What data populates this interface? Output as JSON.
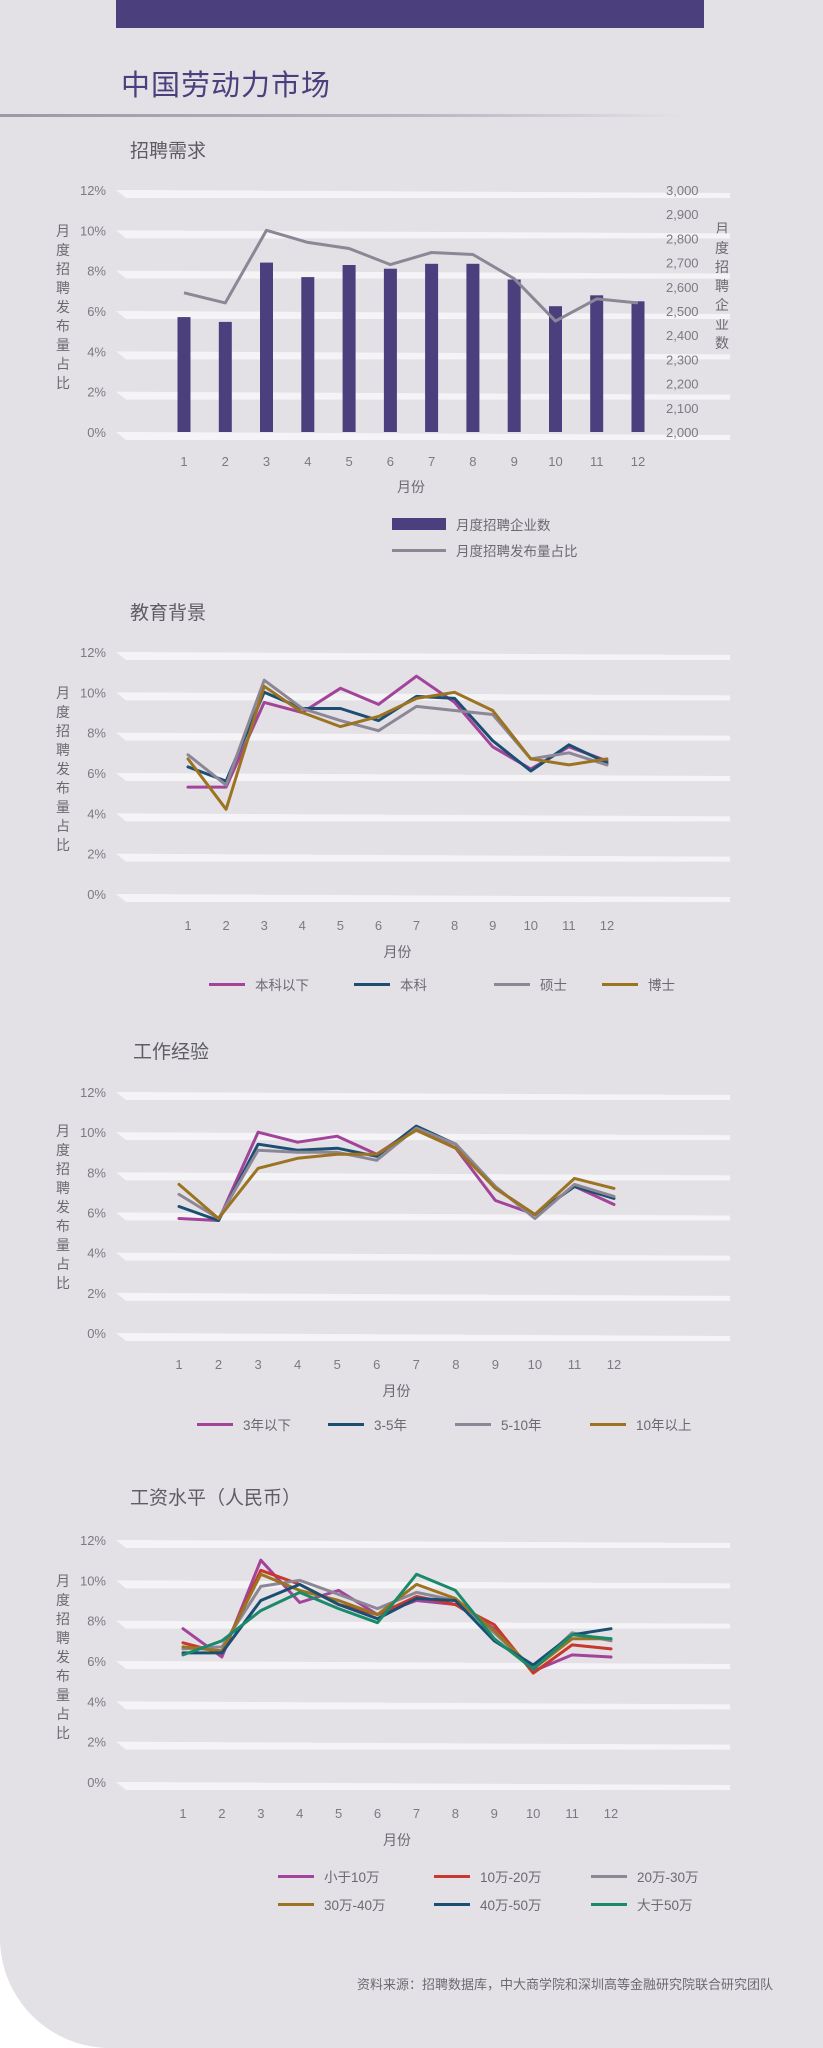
{
  "page": {
    "title": "中国劳动力市场",
    "source_note": "资料来源：招聘数据库，中大商学院和深圳高等金融研究院联合研究团队",
    "accent_color": "#4b3f7d"
  },
  "chart_data": [
    {
      "type": "bar",
      "title": "招聘需求",
      "categories": [
        "1",
        "2",
        "3",
        "4",
        "5",
        "6",
        "7",
        "8",
        "9",
        "10",
        "11",
        "12"
      ],
      "xlabel": "月份",
      "ylabel": "月度招聘发布量占比",
      "ylabel_right": "月度招聘企业数",
      "ylim": [
        0,
        12
      ],
      "yticks": [
        "0%",
        "2%",
        "4%",
        "6%",
        "8%",
        "10%",
        "12%"
      ],
      "y2lim": [
        2000,
        3000
      ],
      "y2ticks": [
        "2,000",
        "2,100",
        "2,200",
        "2,300",
        "2,400",
        "2,500",
        "2,600",
        "2,700",
        "2,800",
        "2,900",
        "3,000"
      ],
      "series": [
        {
          "name": "月度招聘企业数",
          "kind": "bar",
          "axis": "right",
          "color": "#4b3f7d",
          "values": [
            2475,
            2455,
            2700,
            2640,
            2690,
            2675,
            2695,
            2695,
            2630,
            2520,
            2565,
            2540
          ]
        },
        {
          "name": "月度招聘发布量占比",
          "kind": "line",
          "axis": "left",
          "color": "#8b8796",
          "values": [
            6.9,
            6.4,
            10.0,
            9.4,
            9.1,
            8.3,
            8.9,
            8.8,
            7.6,
            5.5,
            6.6,
            6.4
          ]
        }
      ],
      "grid": true,
      "legend_position": "bottom"
    },
    {
      "type": "line",
      "title": "教育背景",
      "categories": [
        "1",
        "2",
        "3",
        "4",
        "5",
        "6",
        "7",
        "8",
        "9",
        "10",
        "11",
        "12"
      ],
      "xlabel": "月份",
      "ylabel": "月度招聘发布量占比",
      "ylim": [
        0,
        12
      ],
      "yticks": [
        "0%",
        "2%",
        "4%",
        "6%",
        "8%",
        "10%",
        "12%"
      ],
      "series": [
        {
          "name": "本科以下",
          "color": "#a2449a",
          "values": [
            5.3,
            5.3,
            9.5,
            9.0,
            10.2,
            9.4,
            10.8,
            9.5,
            7.3,
            6.2,
            7.3,
            6.6
          ]
        },
        {
          "name": "本科",
          "color": "#1b4f72",
          "values": [
            6.3,
            5.6,
            10.0,
            9.2,
            9.2,
            8.6,
            9.8,
            9.7,
            7.6,
            6.1,
            7.4,
            6.5
          ]
        },
        {
          "name": "硕士",
          "color": "#8b8796",
          "values": [
            6.9,
            5.4,
            10.6,
            9.2,
            8.6,
            8.1,
            9.3,
            9.1,
            8.9,
            6.7,
            7.0,
            6.4
          ]
        },
        {
          "name": "博士",
          "color": "#9b7321",
          "values": [
            6.7,
            4.2,
            10.3,
            9.0,
            8.3,
            8.8,
            9.7,
            10.0,
            9.1,
            6.7,
            6.4,
            6.7
          ]
        }
      ],
      "grid": true,
      "legend_position": "bottom"
    },
    {
      "type": "line",
      "title": "工作经验",
      "categories": [
        "1",
        "2",
        "3",
        "4",
        "5",
        "6",
        "7",
        "8",
        "9",
        "10",
        "11",
        "12"
      ],
      "xlabel": "月份",
      "ylabel": "月度招聘发布量占比",
      "ylim": [
        0,
        12
      ],
      "yticks": [
        "0%",
        "2%",
        "4%",
        "6%",
        "8%",
        "10%",
        "12%"
      ],
      "series": [
        {
          "name": "3年以下",
          "color": "#a2449a",
          "values": [
            5.7,
            5.6,
            10.0,
            9.5,
            9.8,
            8.9,
            10.2,
            9.2,
            6.6,
            5.9,
            7.3,
            6.4
          ]
        },
        {
          "name": "3-5年",
          "color": "#1b4f72",
          "values": [
            6.3,
            5.6,
            9.4,
            9.1,
            9.2,
            8.8,
            10.3,
            9.4,
            7.2,
            5.9,
            7.3,
            6.7
          ]
        },
        {
          "name": "5-10年",
          "color": "#8b8796",
          "values": [
            6.9,
            5.7,
            9.1,
            9.0,
            9.0,
            8.6,
            10.2,
            9.4,
            7.3,
            5.7,
            7.4,
            6.8
          ]
        },
        {
          "name": "10年以上",
          "color": "#9b7321",
          "values": [
            7.4,
            5.7,
            8.2,
            8.7,
            8.9,
            8.9,
            10.1,
            9.2,
            7.2,
            5.9,
            7.7,
            7.2
          ]
        }
      ],
      "grid": true,
      "legend_position": "bottom"
    },
    {
      "type": "line",
      "title": "工资水平（人民币）",
      "categories": [
        "1",
        "2",
        "3",
        "4",
        "5",
        "6",
        "7",
        "8",
        "9",
        "10",
        "11",
        "12"
      ],
      "xlabel": "月份",
      "ylabel": "月度招聘发布量占比",
      "ylim": [
        0,
        12
      ],
      "yticks": [
        "0%",
        "2%",
        "4%",
        "6%",
        "8%",
        "10%",
        "12%"
      ],
      "series": [
        {
          "name": "小于10万",
          "color": "#a2449a",
          "values": [
            7.6,
            6.2,
            11.0,
            8.9,
            9.5,
            8.3,
            9.0,
            8.8,
            7.6,
            5.5,
            6.3,
            6.2
          ]
        },
        {
          "name": "10万-20万",
          "color": "#c8382e",
          "values": [
            6.9,
            6.4,
            10.5,
            9.8,
            8.8,
            8.3,
            9.2,
            8.8,
            7.8,
            5.4,
            6.8,
            6.6
          ]
        },
        {
          "name": "20万-30万",
          "color": "#8b8796",
          "values": [
            6.6,
            6.7,
            9.7,
            10.0,
            9.3,
            8.6,
            9.4,
            9.0,
            7.4,
            5.6,
            7.4,
            7.0
          ]
        },
        {
          "name": "30万-40万",
          "color": "#9b7321",
          "values": [
            6.7,
            6.5,
            10.3,
            9.5,
            9.0,
            8.3,
            9.8,
            9.1,
            7.5,
            5.6,
            7.1,
            7.1
          ]
        },
        {
          "name": "40万-50万",
          "color": "#1b4f72",
          "values": [
            6.4,
            6.4,
            9.0,
            9.8,
            8.8,
            8.1,
            9.1,
            9.0,
            7.0,
            5.8,
            7.3,
            7.6
          ]
        },
        {
          "name": "大于50万",
          "color": "#1a8a6a",
          "values": [
            6.3,
            7.0,
            8.5,
            9.4,
            8.6,
            7.9,
            10.3,
            9.5,
            7.1,
            5.6,
            7.3,
            7.1
          ]
        }
      ],
      "grid": true,
      "legend_position": "bottom"
    }
  ]
}
